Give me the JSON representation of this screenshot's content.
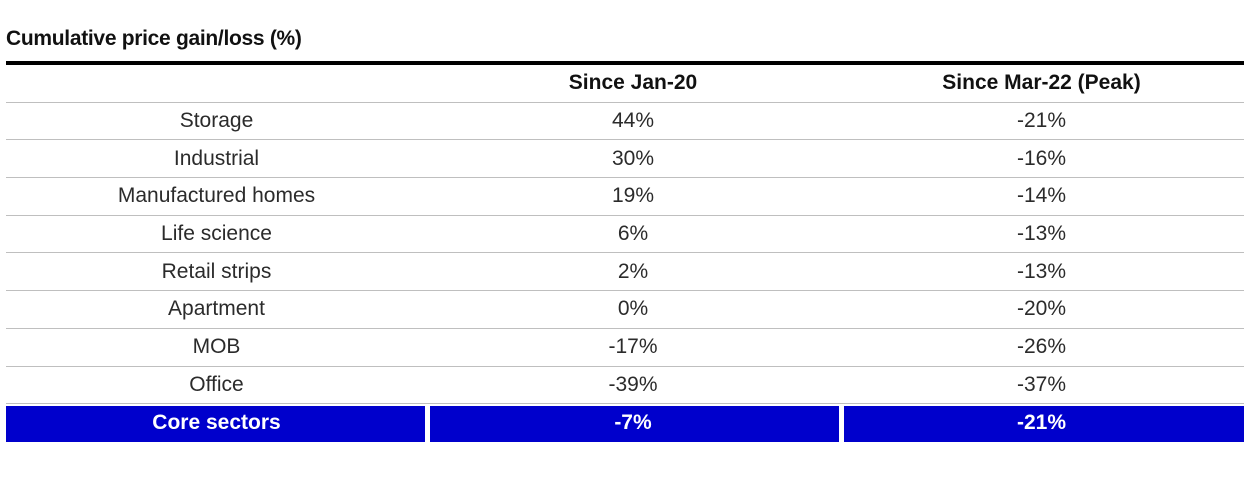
{
  "title": "Cumulative price gain/loss (%)",
  "colors": {
    "highlight": "#0000cc",
    "rule": "#000000",
    "row_border": "#bfbfbf"
  },
  "chart_data": {
    "type": "table",
    "title": "Cumulative price gain/loss (%)",
    "columns": [
      "",
      "Since Jan-20",
      "Since Mar-22 (Peak)"
    ],
    "rows": [
      {
        "label": "Storage",
        "values": [
          "44%",
          "-21%"
        ]
      },
      {
        "label": "Industrial",
        "values": [
          "30%",
          "-16%"
        ]
      },
      {
        "label": "Manufactured homes",
        "values": [
          "19%",
          "-14%"
        ]
      },
      {
        "label": "Life science",
        "values": [
          "6%",
          "-13%"
        ]
      },
      {
        "label": "Retail strips",
        "values": [
          "2%",
          "-13%"
        ]
      },
      {
        "label": "Apartment",
        "values": [
          "0%",
          "-20%"
        ]
      },
      {
        "label": "MOB",
        "values": [
          "-17%",
          "-26%"
        ]
      },
      {
        "label": "Office",
        "values": [
          "-39%",
          "-37%"
        ]
      }
    ],
    "total": {
      "label": "Core sectors",
      "values": [
        "-7%",
        "-21%"
      ]
    }
  }
}
